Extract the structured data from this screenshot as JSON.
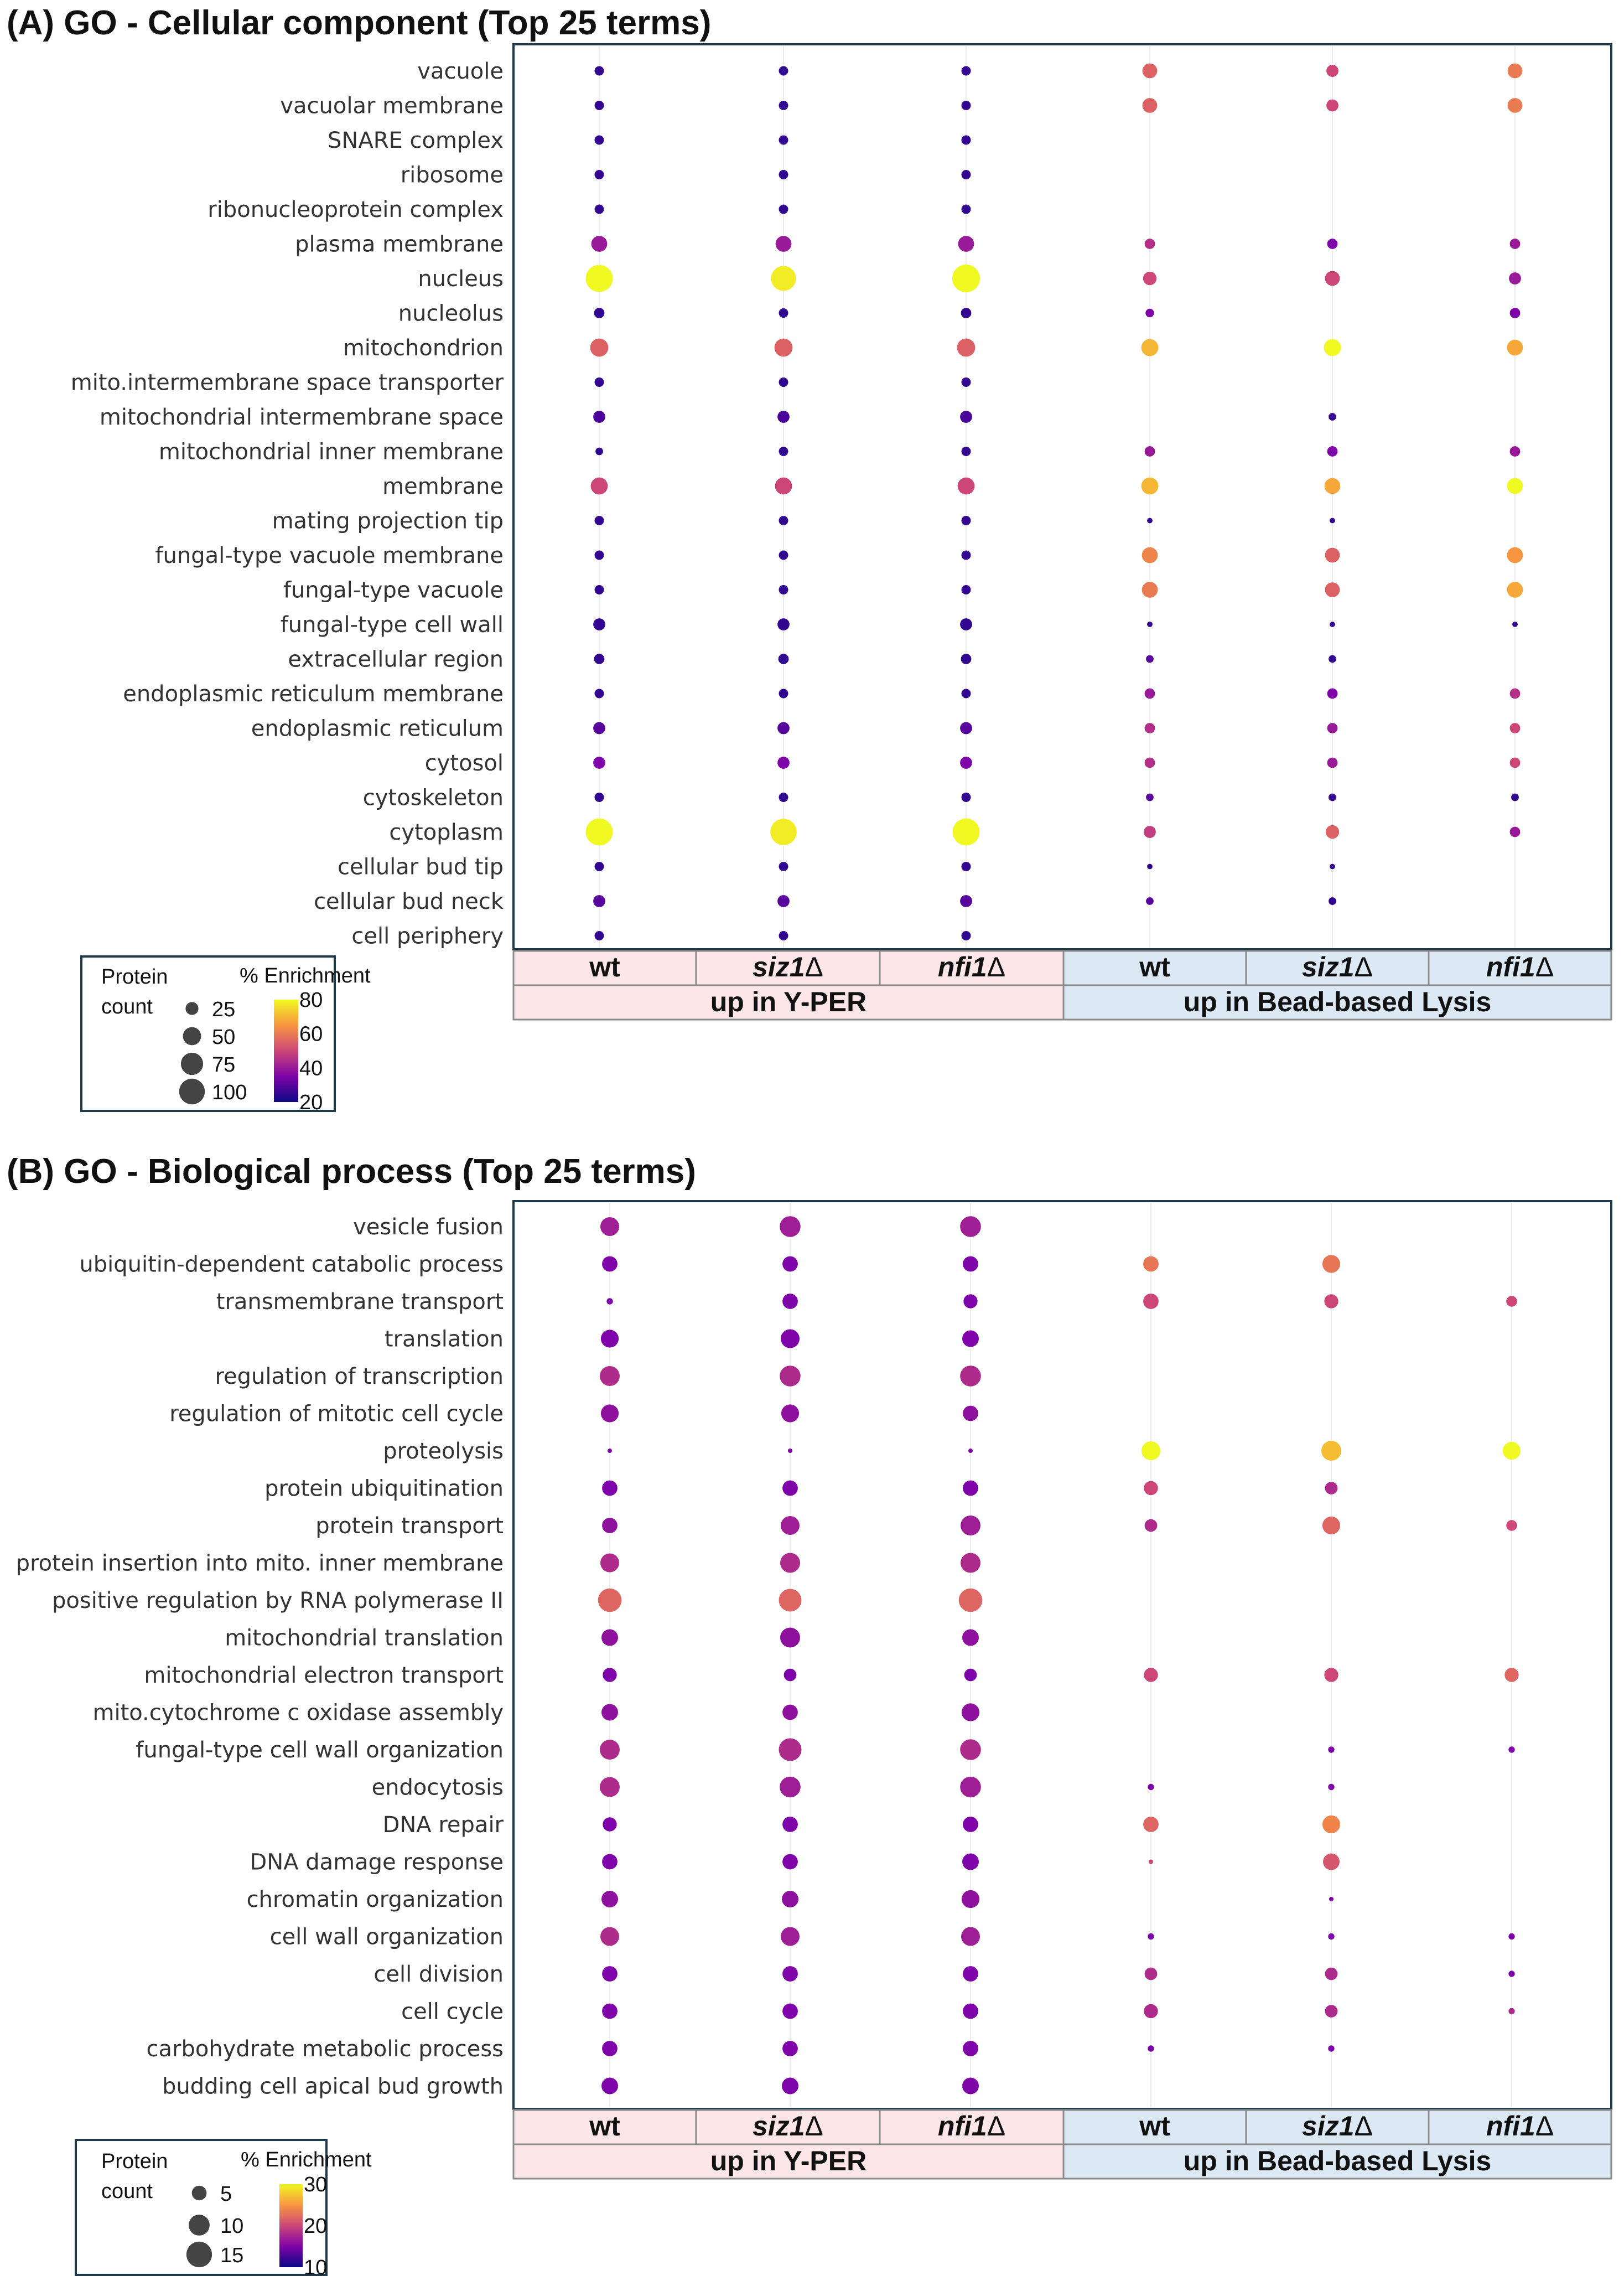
{
  "chart_data": [
    {
      "type": "scatter",
      "panel_label": "(A)",
      "title": "GO - Cellular component (Top 25 terms)",
      "terms": [
        "vacuole",
        "vacuolar membrane",
        "SNARE complex",
        "ribosome",
        "ribonucleoprotein complex",
        "plasma membrane",
        "nucleus",
        "nucleolus",
        "mitochondrion",
        "mito.intermembrane space transporter",
        "mitochondrial intermembrane space",
        "mitochondrial inner membrane",
        "membrane",
        "mating projection tip",
        "fungal-type vacuole membrane",
        "fungal-type vacuole",
        "fungal-type cell wall",
        "extracellular region",
        "endoplasmic reticulum membrane",
        "endoplasmic reticulum",
        "cytosol",
        "cytoskeleton",
        "cytoplasm",
        "cellular bud tip",
        "cellular bud neck",
        "cell periphery"
      ],
      "columns": [
        {
          "name": "wt",
          "italic": false,
          "group": "up in Y-PER"
        },
        {
          "name": "siz1",
          "italic": true,
          "group": "up in Y-PER"
        },
        {
          "name": "nfi1",
          "italic": true,
          "group": "up in Y-PER"
        },
        {
          "name": "wt",
          "italic": false,
          "group": "up in Bead-based Lysis"
        },
        {
          "name": "siz1",
          "italic": true,
          "group": "up in Bead-based Lysis"
        },
        {
          "name": "nfi1",
          "italic": true,
          "group": "up in Bead-based Lysis"
        }
      ],
      "delta_symbol": "Δ",
      "groups": [
        {
          "name": "up in Y-PER",
          "color": "#fde6e8"
        },
        {
          "name": "up in Bead-based Lysis",
          "color": "#dce8f4"
        }
      ],
      "count_values": [
        [
          12,
          12,
          12,
          30,
          20,
          30
        ],
        [
          12,
          12,
          12,
          30,
          20,
          30
        ],
        [
          12,
          12,
          12,
          null,
          null,
          null
        ],
        [
          12,
          12,
          12,
          null,
          null,
          null
        ],
        [
          12,
          12,
          12,
          null,
          null,
          null
        ],
        [
          35,
          35,
          35,
          15,
          15,
          15
        ],
        [
          100,
          85,
          105,
          25,
          30,
          20
        ],
        [
          15,
          12,
          15,
          10,
          null,
          15
        ],
        [
          45,
          45,
          45,
          40,
          40,
          35
        ],
        [
          12,
          12,
          12,
          null,
          null,
          null
        ],
        [
          20,
          20,
          20,
          null,
          8,
          null
        ],
        [
          8,
          12,
          12,
          15,
          15,
          15
        ],
        [
          40,
          40,
          40,
          40,
          35,
          35
        ],
        [
          12,
          12,
          12,
          4,
          4,
          null
        ],
        [
          12,
          12,
          12,
          35,
          30,
          35
        ],
        [
          12,
          12,
          12,
          35,
          30,
          35
        ],
        [
          20,
          20,
          20,
          4,
          4,
          4
        ],
        [
          15,
          15,
          15,
          8,
          8,
          null
        ],
        [
          12,
          12,
          12,
          15,
          15,
          15
        ],
        [
          20,
          20,
          20,
          15,
          15,
          15
        ],
        [
          20,
          20,
          20,
          15,
          15,
          15
        ],
        [
          12,
          12,
          12,
          8,
          8,
          8
        ],
        [
          100,
          95,
          100,
          20,
          25,
          15
        ],
        [
          12,
          12,
          12,
          4,
          4,
          null
        ],
        [
          20,
          20,
          20,
          8,
          8,
          null
        ],
        [
          12,
          12,
          12,
          null,
          null,
          null
        ]
      ],
      "enrichment_values": [
        [
          25,
          25,
          25,
          55,
          50,
          60
        ],
        [
          25,
          25,
          25,
          55,
          50,
          60
        ],
        [
          25,
          25,
          25,
          null,
          null,
          null
        ],
        [
          25,
          25,
          25,
          null,
          null,
          null
        ],
        [
          25,
          25,
          25,
          null,
          null,
          null
        ],
        [
          40,
          40,
          40,
          45,
          35,
          40
        ],
        [
          80,
          78,
          80,
          50,
          50,
          40
        ],
        [
          25,
          25,
          25,
          35,
          null,
          35
        ],
        [
          55,
          55,
          55,
          70,
          80,
          68
        ],
        [
          25,
          25,
          25,
          null,
          null,
          null
        ],
        [
          28,
          28,
          28,
          null,
          25,
          null
        ],
        [
          25,
          25,
          25,
          40,
          35,
          40
        ],
        [
          50,
          50,
          50,
          70,
          68,
          80
        ],
        [
          25,
          25,
          25,
          25,
          25,
          null
        ],
        [
          25,
          25,
          25,
          62,
          55,
          65
        ],
        [
          25,
          25,
          25,
          60,
          55,
          68
        ],
        [
          25,
          25,
          25,
          25,
          25,
          25
        ],
        [
          25,
          25,
          25,
          30,
          25,
          null
        ],
        [
          25,
          25,
          25,
          40,
          35,
          45
        ],
        [
          30,
          30,
          30,
          45,
          40,
          50
        ],
        [
          35,
          35,
          35,
          45,
          40,
          50
        ],
        [
          25,
          25,
          25,
          30,
          25,
          25
        ],
        [
          80,
          78,
          80,
          48,
          55,
          40
        ],
        [
          25,
          25,
          25,
          25,
          25,
          null
        ],
        [
          30,
          30,
          30,
          30,
          25,
          null
        ],
        [
          25,
          25,
          25,
          null,
          null,
          null
        ]
      ],
      "legend": {
        "size_title_lines": [
          "Protein",
          "count"
        ],
        "size_values": [
          25,
          50,
          75,
          100
        ],
        "color_title": "% Enrichment",
        "color_ticks": [
          80,
          60,
          40,
          20
        ],
        "color_range": [
          20,
          80
        ]
      }
    },
    {
      "type": "scatter",
      "panel_label": "(B)",
      "title": "GO - Biological process (Top 25 terms)",
      "terms": [
        "vesicle fusion",
        "ubiquitin-dependent catabolic process",
        "transmembrane transport",
        "translation",
        "regulation of transcription",
        "regulation of mitotic cell cycle",
        "proteolysis",
        "protein ubiquitination",
        "protein transport",
        "protein insertion into mito. inner membrane",
        "positive regulation by RNA polymerase II",
        "mitochondrial translation",
        "mitochondrial electron transport",
        "mito.cytochrome c oxidase assembly",
        "fungal-type cell wall organization",
        "endocytosis",
        "DNA repair",
        "DNA damage response",
        "chromatin organization",
        "cell wall organization",
        "cell division",
        "cell cycle",
        "carbohydrate metabolic process",
        "budding cell apical bud growth"
      ],
      "columns": [
        {
          "name": "wt",
          "italic": false,
          "group": "up in Y-PER"
        },
        {
          "name": "siz1",
          "italic": true,
          "group": "up in Y-PER"
        },
        {
          "name": "nfi1",
          "italic": true,
          "group": "up in Y-PER"
        },
        {
          "name": "wt",
          "italic": false,
          "group": "up in Bead-based Lysis"
        },
        {
          "name": "siz1",
          "italic": true,
          "group": "up in Bead-based Lysis"
        },
        {
          "name": "nfi1",
          "italic": true,
          "group": "up in Bead-based Lysis"
        }
      ],
      "delta_symbol": "Δ",
      "groups": [
        {
          "name": "up in Y-PER",
          "color": "#fde6e8"
        },
        {
          "name": "up in Bead-based Lysis",
          "color": "#dce8f4"
        }
      ],
      "count_values": [
        [
          9,
          11,
          11,
          null,
          null,
          null
        ],
        [
          6,
          6,
          6,
          6,
          8,
          null
        ],
        [
          1,
          6,
          5,
          6,
          5,
          3
        ],
        [
          8,
          9,
          7,
          null,
          null,
          null
        ],
        [
          10,
          11,
          11,
          null,
          null,
          null
        ],
        [
          8,
          8,
          6,
          null,
          null,
          null
        ],
        [
          0.5,
          0.5,
          0.5,
          9,
          10,
          8
        ],
        [
          6,
          6,
          6,
          5,
          4,
          null
        ],
        [
          6,
          9,
          10,
          4,
          8,
          3
        ],
        [
          9,
          10,
          10,
          null,
          null,
          null
        ],
        [
          14,
          13,
          14,
          null,
          null,
          null
        ],
        [
          7,
          10,
          7,
          null,
          null,
          null
        ],
        [
          5,
          4,
          4,
          5,
          5,
          5
        ],
        [
          7,
          6,
          8,
          null,
          null,
          null
        ],
        [
          10,
          13,
          11,
          null,
          1,
          1
        ],
        [
          10,
          11,
          11,
          1,
          1,
          null
        ],
        [
          5,
          6,
          6,
          6,
          8,
          null
        ],
        [
          6,
          6,
          7,
          0.5,
          7,
          null
        ],
        [
          7,
          7,
          8,
          null,
          0.5,
          null
        ],
        [
          9,
          9,
          9,
          1,
          1,
          1
        ],
        [
          6,
          6,
          6,
          4,
          4,
          1
        ],
        [
          6,
          6,
          6,
          5,
          4,
          1
        ],
        [
          6,
          6,
          6,
          1,
          1,
          null
        ],
        [
          7,
          7,
          7,
          null,
          null,
          null
        ]
      ],
      "enrichment_values": [
        [
          17,
          17,
          17,
          null,
          null,
          null
        ],
        [
          15,
          15,
          15,
          23,
          23,
          null
        ],
        [
          15,
          15,
          15,
          20,
          20,
          20
        ],
        [
          15,
          15,
          15,
          null,
          null,
          null
        ],
        [
          18,
          18,
          18,
          null,
          null,
          null
        ],
        [
          16,
          16,
          16,
          null,
          null,
          null
        ],
        [
          15,
          15,
          15,
          30,
          27,
          30
        ],
        [
          15,
          15,
          15,
          20,
          18,
          null
        ],
        [
          16,
          17,
          17,
          18,
          22,
          20
        ],
        [
          18,
          18,
          18,
          null,
          null,
          null
        ],
        [
          22,
          22,
          22,
          null,
          null,
          null
        ],
        [
          16,
          16,
          16,
          null,
          null,
          null
        ],
        [
          15,
          15,
          15,
          20,
          20,
          22
        ],
        [
          16,
          16,
          16,
          null,
          null,
          null
        ],
        [
          18,
          18,
          18,
          null,
          15,
          15
        ],
        [
          18,
          17,
          17,
          15,
          15,
          null
        ],
        [
          15,
          15,
          15,
          22,
          24,
          null
        ],
        [
          15,
          15,
          15,
          20,
          21,
          null
        ],
        [
          16,
          16,
          16,
          null,
          15,
          null
        ],
        [
          18,
          17,
          17,
          15,
          15,
          15
        ],
        [
          15,
          15,
          15,
          18,
          18,
          15
        ],
        [
          15,
          15,
          15,
          18,
          18,
          18
        ],
        [
          15,
          15,
          15,
          15,
          15,
          null
        ],
        [
          15,
          15,
          15,
          null,
          null,
          null
        ]
      ],
      "legend": {
        "size_title_lines": [
          "Protein",
          "count"
        ],
        "size_values": [
          5,
          10,
          15
        ],
        "color_title": "% Enrichment",
        "color_ticks": [
          30,
          20,
          10
        ],
        "color_range": [
          10,
          30
        ]
      }
    }
  ]
}
